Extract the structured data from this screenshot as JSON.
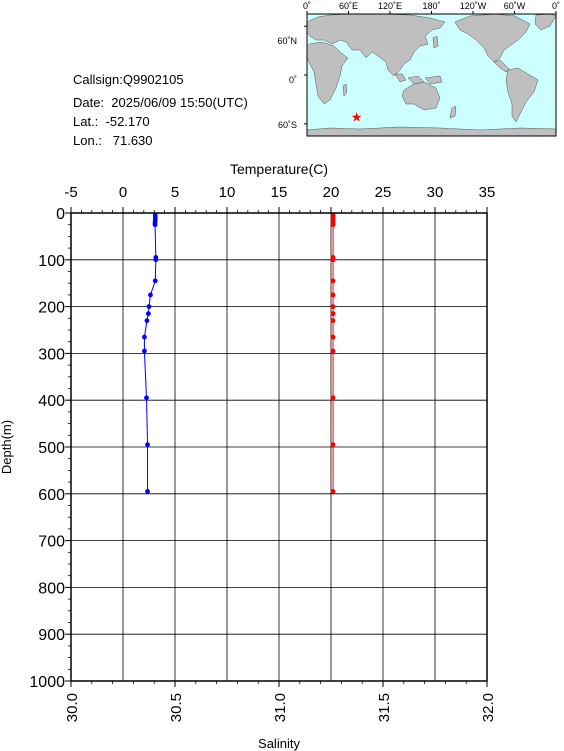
{
  "info": {
    "callsign": "Callsign:Q9902105",
    "date": "Date:  2025/06/09 15:50(UTC)",
    "lat": "Lat.:  -52.170",
    "lon": "Lon.:   71.630"
  },
  "map": {
    "top_labels": [
      "0˚",
      "60˚E",
      "120˚E",
      "180˚",
      "120˚W",
      "60˚W",
      "0˚"
    ],
    "left_labels": [
      "60˚N",
      "0˚",
      "60˚S"
    ],
    "station_lon": 71.63,
    "station_lat": -52.17,
    "ocean_color": "#ccffff",
    "land_color": "#bfbfbf",
    "marker_color": "#ff0000"
  },
  "chart_data": {
    "type": "line",
    "temperature_axis": {
      "label": "Temperature(C)",
      "range": [
        -5,
        35
      ],
      "ticks": [
        -5,
        0,
        5,
        10,
        15,
        20,
        25,
        30,
        35
      ]
    },
    "salinity_axis": {
      "label": "Salinity",
      "range": [
        30.0,
        32.0
      ],
      "ticks": [
        "30.0",
        "30.5",
        "31.0",
        "31.5",
        "32.0"
      ]
    },
    "depth_axis": {
      "label": "Depth(m)",
      "range": [
        0,
        1000
      ],
      "ticks": [
        0,
        100,
        200,
        300,
        400,
        500,
        600,
        700,
        800,
        900,
        1000
      ]
    },
    "grid": true,
    "series": [
      {
        "variable": "salinity",
        "color": "#0000ff",
        "depth": [
          5,
          10,
          15,
          20,
          25,
          95,
          100,
          145,
          175,
          200,
          215,
          230,
          265,
          295,
          395,
          495,
          595
        ],
        "values": [
          30.405,
          30.405,
          30.405,
          30.404,
          30.404,
          30.408,
          30.408,
          30.405,
          30.382,
          30.375,
          30.372,
          30.365,
          30.353,
          30.353,
          30.363,
          30.368,
          30.368
        ]
      },
      {
        "variable": "temperature",
        "color": "#ff0000",
        "depth": [
          5,
          10,
          15,
          20,
          25,
          95,
          100,
          145,
          175,
          200,
          215,
          230,
          265,
          295,
          395,
          495,
          595
        ],
        "values": [
          20.2,
          20.2,
          20.2,
          20.2,
          20.2,
          20.2,
          20.2,
          20.2,
          20.2,
          20.2,
          20.2,
          20.2,
          20.2,
          20.2,
          20.2,
          20.2,
          20.2
        ]
      }
    ]
  }
}
